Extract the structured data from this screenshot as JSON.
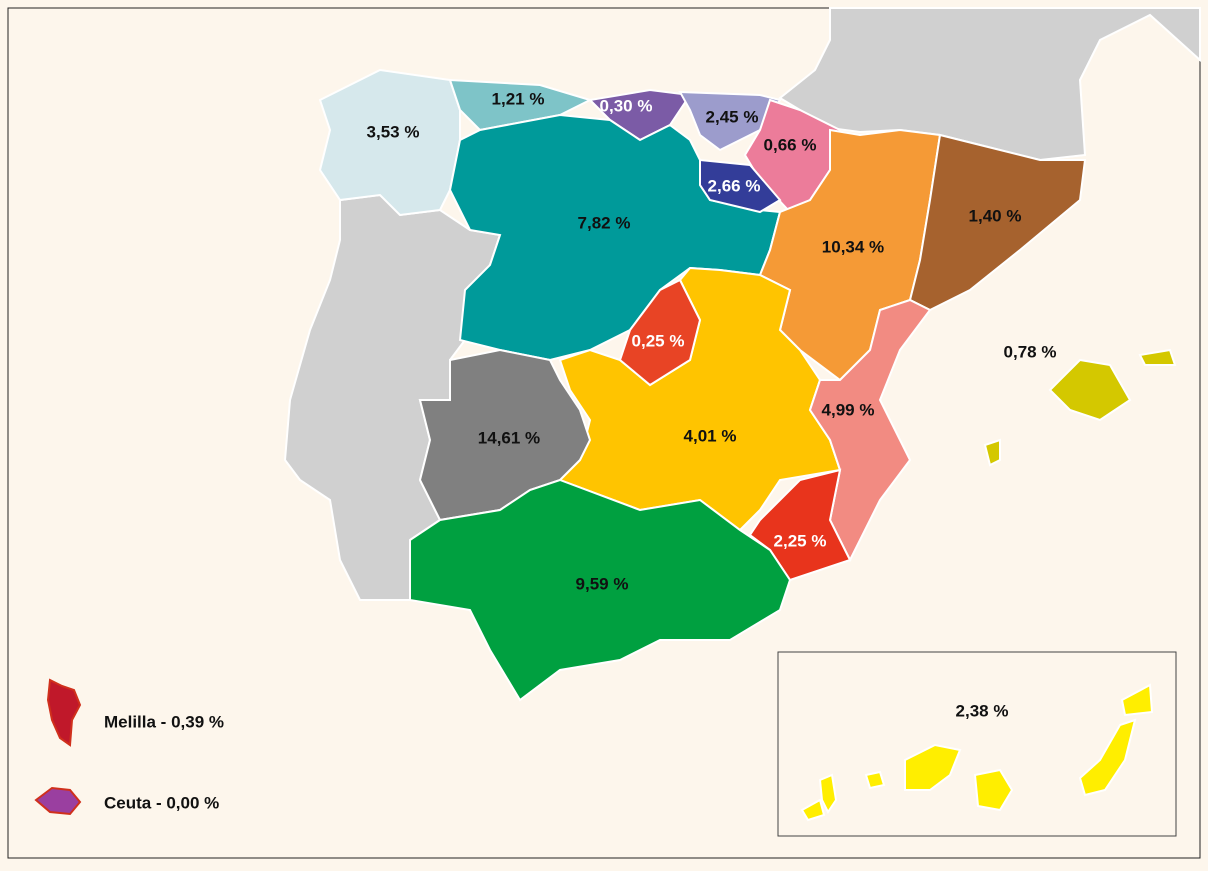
{
  "regions": [
    {
      "label": "3,53 %",
      "color": "#d6e8ec"
    },
    {
      "label": "1,21 %",
      "color": "#7ec4c8"
    },
    {
      "label": "0,30 %",
      "color": "#7b5ba6"
    },
    {
      "label": "2,45 %",
      "color": "#9c9ccc"
    },
    {
      "label": "0,66 %",
      "color": "#ec7c9a"
    },
    {
      "label": "7,82 %",
      "color": "#009a9a"
    },
    {
      "label": "2,66 %",
      "color": "#333d99"
    },
    {
      "label": "10,34 %",
      "color": "#f59a36"
    },
    {
      "label": "1,40 %",
      "color": "#a6622e"
    },
    {
      "label": "4,01 %",
      "color": "#ffc400"
    },
    {
      "label": "0,25 %",
      "color": "#e84425"
    },
    {
      "label": "4,99 %",
      "color": "#f28b82"
    },
    {
      "label": "2,25 %",
      "color": "#e8341c"
    },
    {
      "label": "14,61 %",
      "color": "#808080"
    },
    {
      "label": "9,59 %",
      "color": "#00a040"
    },
    {
      "label": "0,78 %",
      "color": "#d4c800"
    },
    {
      "label": "2,38 %",
      "color": "#ffee00"
    }
  ],
  "legend": [
    {
      "label": "Melilla - 0,39 %",
      "color": "#c0182a"
    },
    {
      "label": "Ceuta - 0,00 %",
      "color": "#9a3fa0"
    }
  ]
}
